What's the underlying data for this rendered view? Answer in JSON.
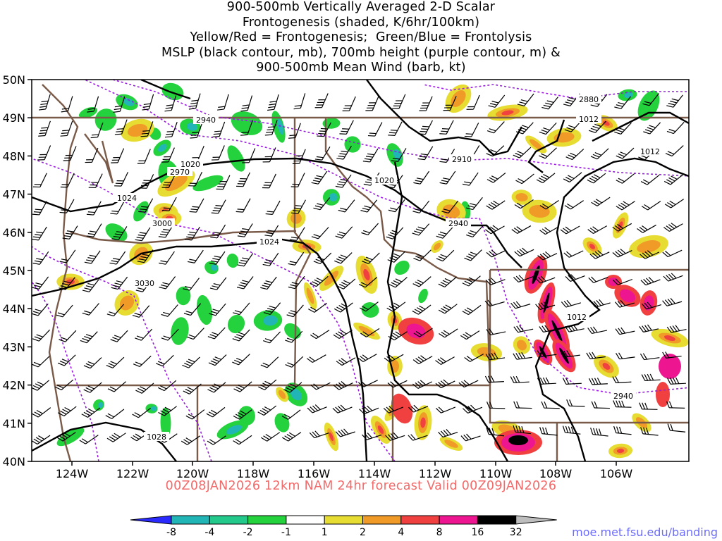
{
  "title_lines": [
    "900-500mb Vertically Averaged 2-D Scalar",
    "Frontogenesis (shaded, K/6hr/100km)",
    "Yellow/Red = Frontogenesis;  Green/Blue = Frontolysis",
    "MSLP (black contour, mb), 700mb height (purple contour, m) &",
    "900-500mb Mean Wind (barb, kt)"
  ],
  "lat_labels": [
    "50N",
    "49N",
    "48N",
    "47N",
    "46N",
    "45N",
    "44N",
    "43N",
    "42N",
    "41N",
    "40N"
  ],
  "lon_labels": [
    "124W",
    "122W",
    "120W",
    "118W",
    "116W",
    "114W",
    "112W",
    "110W",
    "108W",
    "106W"
  ],
  "footer": "00Z08JAN2026 12km NAM 24hr forecast Valid 00Z09JAN2026",
  "credit": "moe.met.fsu.edu/banding",
  "colorbar": {
    "ticks": [
      "-8",
      "-4",
      "-2",
      "-1",
      "1",
      "2",
      "4",
      "8",
      "16",
      "32"
    ],
    "colors": [
      "#2a2aff",
      "#22b5b5",
      "#22c98a",
      "#23d23c",
      "#ffffff",
      "#e6dc32",
      "#f09a28",
      "#f04040",
      "#ee1690",
      "#000000",
      "#bdbdbd"
    ]
  },
  "contour_labels": {
    "mslp": [
      "1020",
      "1024",
      "1024",
      "1028",
      "1020",
      "1012",
      "1012",
      "1012"
    ],
    "height": [
      "2940",
      "2970",
      "3000",
      "3030",
      "2910",
      "2880",
      "2940",
      "2940"
    ]
  },
  "colors": {
    "mslp": "#000000",
    "height": "#9a1ae0",
    "borders": "#7a5a48",
    "footer": "#f26a6a",
    "credit": "#6b6bff"
  }
}
